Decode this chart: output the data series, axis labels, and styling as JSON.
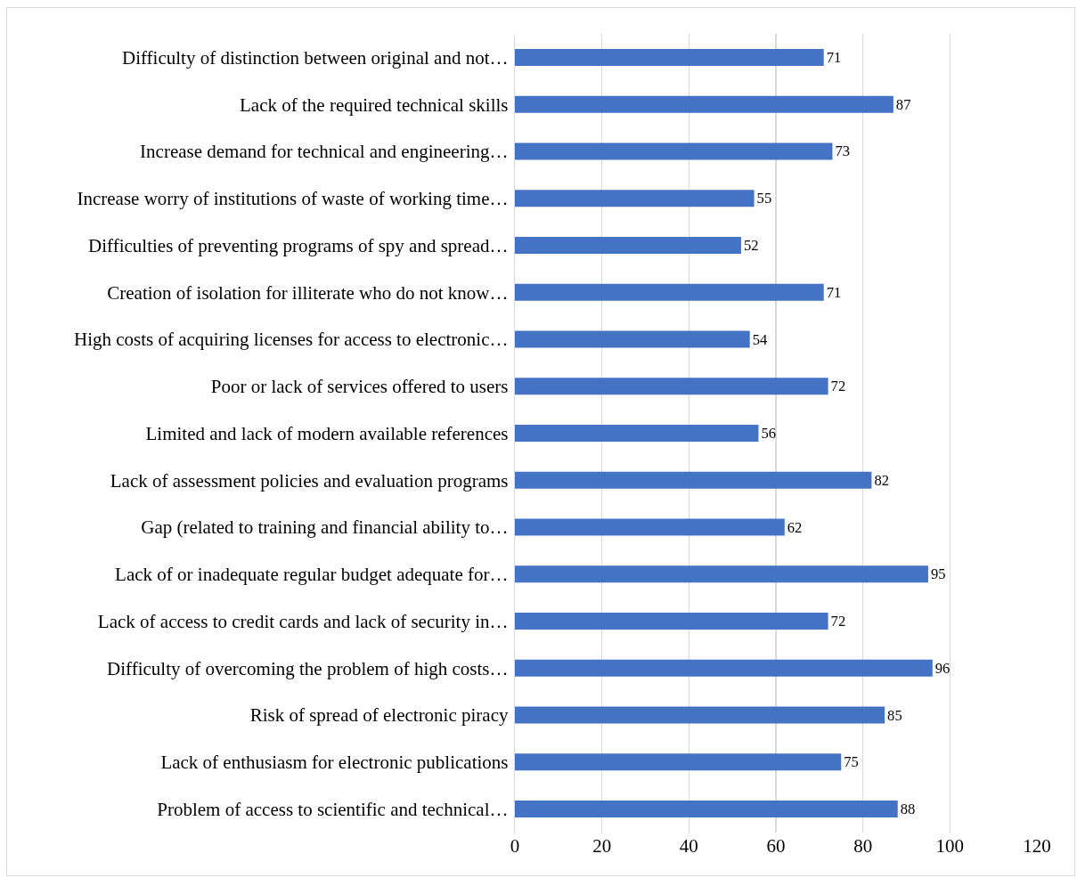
{
  "chart_data": {
    "type": "bar",
    "orientation": "horizontal",
    "categories": [
      "Difficulty of distinction between original and not…",
      "Lack of the required technical skills",
      "Increase demand for technical and engineering…",
      "Increase worry of institutions of waste of working time…",
      "Difficulties of preventing programs of spy and spread…",
      "Creation of isolation for illiterate who do not know…",
      "High costs of acquiring licenses for access to electronic…",
      "Poor or lack of services offered to users",
      "Limited and lack of modern available references",
      "Lack of assessment policies and evaluation programs",
      "Gap (related to training and financial ability to…",
      "Lack of or inadequate regular budget adequate for…",
      "Lack of access to credit cards and lack of security in…",
      "Difficulty of overcoming the problem of high costs…",
      "Risk of spread of electronic piracy",
      "Lack of enthusiasm for electronic publications",
      "Problem of access to scientific and technical…"
    ],
    "values": [
      71,
      87,
      73,
      55,
      52,
      71,
      54,
      72,
      56,
      82,
      62,
      95,
      72,
      96,
      85,
      75,
      88
    ],
    "color": "#4472c4",
    "xlim": [
      0,
      120
    ],
    "xticks": [
      0,
      20,
      40,
      60,
      80,
      100,
      120
    ],
    "grid": "x",
    "data_labels": true
  }
}
